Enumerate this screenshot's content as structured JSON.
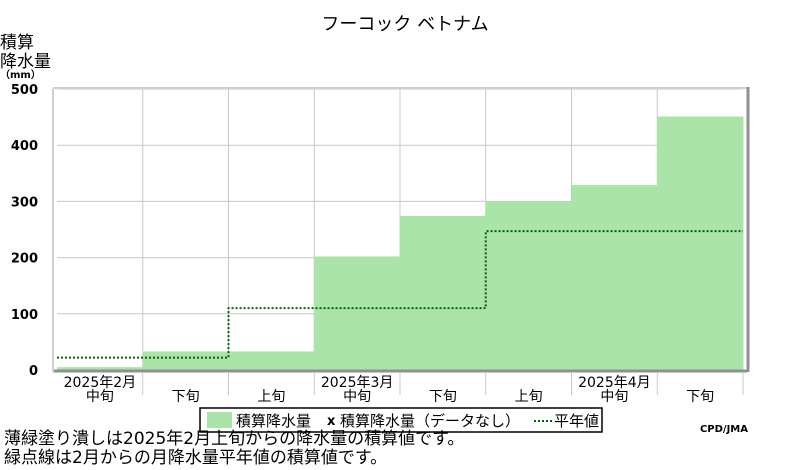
{
  "chart_data": {
    "type": "area",
    "title": "フーコック ベトナム",
    "ylabel_lines": [
      "積算",
      "降水量",
      "（mm）"
    ],
    "ylim": [
      0,
      500
    ],
    "yticks": [
      0,
      100,
      200,
      300,
      400,
      500
    ],
    "grid": true,
    "periods": [
      "中旬",
      "下旬",
      "上旬",
      "中旬",
      "下旬",
      "上旬",
      "中旬",
      "下旬"
    ],
    "month_labels": [
      {
        "label": "2025年2月",
        "period_index": 0
      },
      {
        "label": "2025年3月",
        "period_index": 3
      },
      {
        "label": "2025年4月",
        "period_index": 6
      }
    ],
    "series": [
      {
        "name": "積算降水量",
        "style": "filled-step",
        "color": "#aae4a8",
        "values": [
          5,
          33,
          33,
          202,
          274,
          300,
          329,
          451
        ]
      },
      {
        "name": "積算降水量（データなし）",
        "style": "marker",
        "marker": "x",
        "values": []
      },
      {
        "name": "平年値",
        "style": "dotted-step",
        "color": "#006400",
        "values": [
          22,
          22,
          110,
          110,
          110,
          247,
          247,
          247
        ]
      }
    ],
    "legend_position": "bottom-center",
    "credit": "CPD/JMA"
  },
  "footnotes": [
    "薄緑塗り潰しは2025年2月上旬からの降水量の積算値です。",
    "緑点線は2月からの月降水量平年値の積算値です。"
  ]
}
